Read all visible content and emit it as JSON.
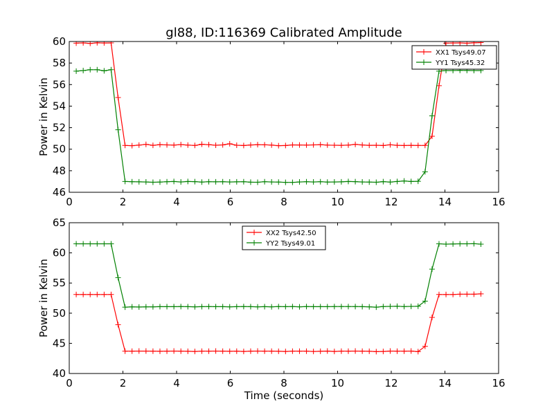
{
  "title": "gl88, ID:116369 Calibrated Amplitude",
  "colors": {
    "series_a": "#ff0000",
    "series_b": "#008000"
  },
  "chart_data": [
    {
      "type": "line",
      "ylabel": "Power in Kelvin",
      "xlabel": "",
      "xlim": [
        0,
        16
      ],
      "ylim": [
        46,
        60
      ],
      "xticks": [
        0,
        2,
        4,
        6,
        8,
        10,
        12,
        14,
        16
      ],
      "yticks": [
        46,
        48,
        50,
        52,
        54,
        56,
        58,
        60
      ],
      "grid": false,
      "legend_position": "top-right",
      "x": [
        0.26,
        0.52,
        0.78,
        1.04,
        1.3,
        1.56,
        1.82,
        2.08,
        2.34,
        2.6,
        2.86,
        3.12,
        3.38,
        3.64,
        3.9,
        4.16,
        4.42,
        4.68,
        4.94,
        5.2,
        5.46,
        5.72,
        5.98,
        6.24,
        6.5,
        6.76,
        7.02,
        7.28,
        7.54,
        7.8,
        8.06,
        8.32,
        8.58,
        8.84,
        9.1,
        9.36,
        9.62,
        9.88,
        10.14,
        10.4,
        10.66,
        10.92,
        11.18,
        11.44,
        11.7,
        11.96,
        12.22,
        12.48,
        12.74,
        13.0,
        13.26,
        13.52,
        13.78,
        14.04,
        14.3,
        14.56,
        14.82,
        15.08,
        15.34
      ],
      "series": [
        {
          "name": "XX1 Tsys49.07",
          "values": [
            59.85,
            59.87,
            59.82,
            59.88,
            59.86,
            59.87,
            54.8,
            50.35,
            50.33,
            50.38,
            50.45,
            50.36,
            50.42,
            50.4,
            50.38,
            50.43,
            50.38,
            50.35,
            50.46,
            50.42,
            50.37,
            50.4,
            50.5,
            50.37,
            50.34,
            50.39,
            50.42,
            50.41,
            50.38,
            50.33,
            50.34,
            50.4,
            50.39,
            50.38,
            50.4,
            50.42,
            50.38,
            50.37,
            50.36,
            50.38,
            50.45,
            50.39,
            50.36,
            50.37,
            50.34,
            50.41,
            50.36,
            50.34,
            50.36,
            50.35,
            50.35,
            51.2,
            55.9,
            59.85,
            59.86,
            59.87,
            59.84,
            59.88,
            59.9
          ]
        },
        {
          "name": "YY1 Tsys45.32",
          "values": [
            57.25,
            57.3,
            57.38,
            57.38,
            57.28,
            57.38,
            51.8,
            47.0,
            46.98,
            46.97,
            46.96,
            46.93,
            46.95,
            46.98,
            47.0,
            46.96,
            47.0,
            46.99,
            46.95,
            46.98,
            46.97,
            46.98,
            46.96,
            46.97,
            46.98,
            46.94,
            46.93,
            46.98,
            46.96,
            46.95,
            46.92,
            46.92,
            46.96,
            46.98,
            46.96,
            46.98,
            46.95,
            46.96,
            46.97,
            47.0,
            46.99,
            46.96,
            46.95,
            46.93,
            46.99,
            46.95,
            47.0,
            47.05,
            47.0,
            47.02,
            47.9,
            53.1,
            57.25,
            57.3,
            57.3,
            57.32,
            57.31,
            57.3,
            57.3
          ]
        }
      ]
    },
    {
      "type": "line",
      "ylabel": "Power in Kelvin",
      "xlabel": "Time (seconds)",
      "xlim": [
        0,
        16
      ],
      "ylim": [
        40,
        65
      ],
      "xticks": [
        0,
        2,
        4,
        6,
        8,
        10,
        12,
        14,
        16
      ],
      "yticks": [
        40,
        45,
        50,
        55,
        60,
        65
      ],
      "grid": false,
      "legend_position": "top-center",
      "x": [
        0.26,
        0.52,
        0.78,
        1.04,
        1.3,
        1.56,
        1.82,
        2.08,
        2.34,
        2.6,
        2.86,
        3.12,
        3.38,
        3.64,
        3.9,
        4.16,
        4.42,
        4.68,
        4.94,
        5.2,
        5.46,
        5.72,
        5.98,
        6.24,
        6.5,
        6.76,
        7.02,
        7.28,
        7.54,
        7.8,
        8.06,
        8.32,
        8.58,
        8.84,
        9.1,
        9.36,
        9.62,
        9.88,
        10.14,
        10.4,
        10.66,
        10.92,
        11.18,
        11.44,
        11.7,
        11.96,
        12.22,
        12.48,
        12.74,
        13.0,
        13.26,
        13.52,
        13.78,
        14.04,
        14.3,
        14.56,
        14.82,
        15.08,
        15.34
      ],
      "series": [
        {
          "name": "XX2 Tsys42.50",
          "values": [
            53.1,
            53.1,
            53.1,
            53.1,
            53.1,
            53.1,
            48.1,
            43.7,
            43.7,
            43.72,
            43.72,
            43.7,
            43.68,
            43.7,
            43.72,
            43.7,
            43.68,
            43.66,
            43.7,
            43.7,
            43.72,
            43.7,
            43.68,
            43.7,
            43.66,
            43.7,
            43.72,
            43.7,
            43.7,
            43.68,
            43.66,
            43.7,
            43.7,
            43.7,
            43.65,
            43.68,
            43.72,
            43.66,
            43.7,
            43.7,
            43.72,
            43.7,
            43.68,
            43.63,
            43.66,
            43.72,
            43.7,
            43.7,
            43.72,
            43.63,
            44.5,
            49.3,
            53.1,
            53.1,
            53.1,
            53.15,
            53.15,
            53.15,
            53.2
          ]
        },
        {
          "name": "YY2 Tsys49.01",
          "values": [
            61.5,
            61.5,
            61.5,
            61.5,
            61.5,
            61.5,
            55.9,
            51.0,
            51.05,
            51.02,
            51.05,
            51.05,
            51.08,
            51.08,
            51.08,
            51.1,
            51.08,
            51.05,
            51.08,
            51.1,
            51.08,
            51.08,
            51.05,
            51.08,
            51.1,
            51.08,
            51.05,
            51.08,
            51.05,
            51.1,
            51.08,
            51.1,
            51.05,
            51.1,
            51.08,
            51.08,
            51.08,
            51.1,
            51.1,
            51.1,
            51.1,
            51.08,
            51.05,
            51.0,
            51.1,
            51.12,
            51.15,
            51.1,
            51.12,
            51.15,
            52.0,
            57.3,
            61.5,
            61.45,
            61.48,
            61.5,
            61.5,
            61.52,
            61.45
          ]
        }
      ]
    }
  ]
}
